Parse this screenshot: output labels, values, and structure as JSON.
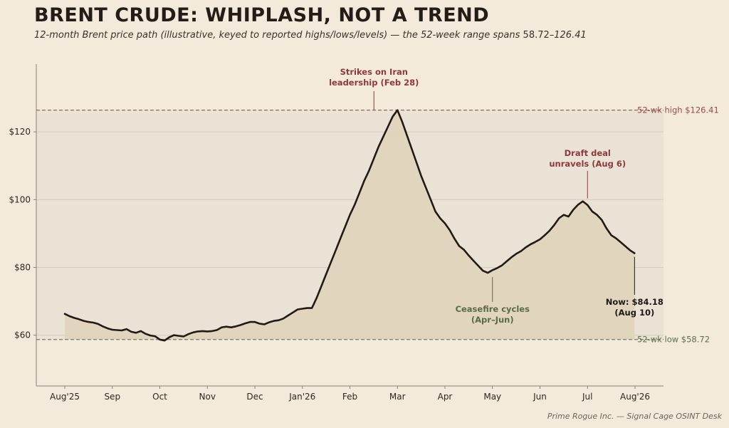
{
  "title": "BRENT CRUDE: WHIPLASH, NOT A TREND",
  "subtitle_text": "12-month Brent price path (illustrative, keyed to reported highs/lows/levels) — the 52-week range spans ",
  "subtitle_range_low": "58.72",
  "subtitle_range_sep": "–",
  "subtitle_range_high": "126.41",
  "credit": "Prime Rogue Inc. — Signal Cage OSINT Desk",
  "colors": {
    "background": "#f3eadb",
    "plot_band": "#e9e2d5",
    "area_fill": "#e0d4bc",
    "line": "#231a16",
    "high_ref": "#9a4b4b",
    "low_ref": "#5e6e52",
    "grid": "#d4ccbf",
    "annot_red": "#8c3a3a",
    "annot_green": "#5a6b4a",
    "annot_dark": "#1e1915"
  },
  "chart_data": {
    "type": "line",
    "ylim": [
      45,
      140
    ],
    "y_ticks": [
      {
        "value": 60,
        "label": "$60"
      },
      {
        "value": 80,
        "label": "$80"
      },
      {
        "value": 100,
        "label": "$100"
      },
      {
        "value": 120,
        "label": "$120"
      }
    ],
    "x_ticks": [
      "Aug'25",
      "Sep",
      "Oct",
      "Nov",
      "Dec",
      "Jan'26",
      "Feb",
      "Mar",
      "Apr",
      "May",
      "Jun",
      "Jul",
      "Aug'26"
    ],
    "reference_lines": [
      {
        "id": "high",
        "value": 126.41,
        "label": "52-wk high $126.41"
      },
      {
        "id": "low",
        "value": 58.72,
        "label": "52-wk low $58.72"
      }
    ],
    "series_points": [
      [
        0,
        66.3
      ],
      [
        0.1,
        65.6
      ],
      [
        0.2,
        65.1
      ],
      [
        0.3,
        64.7
      ],
      [
        0.4,
        64.2
      ],
      [
        0.5,
        63.9
      ],
      [
        0.6,
        63.7
      ],
      [
        0.7,
        63.3
      ],
      [
        0.8,
        62.6
      ],
      [
        0.9,
        62.0
      ],
      [
        1.0,
        61.6
      ],
      [
        1.1,
        61.5
      ],
      [
        1.2,
        61.4
      ],
      [
        1.3,
        61.8
      ],
      [
        1.4,
        61.0
      ],
      [
        1.5,
        60.7
      ],
      [
        1.6,
        61.2
      ],
      [
        1.7,
        60.4
      ],
      [
        1.8,
        59.9
      ],
      [
        1.9,
        59.7
      ],
      [
        2.0,
        58.7
      ],
      [
        2.1,
        58.4
      ],
      [
        2.2,
        59.4
      ],
      [
        2.3,
        60.0
      ],
      [
        2.4,
        59.8
      ],
      [
        2.5,
        59.6
      ],
      [
        2.6,
        60.3
      ],
      [
        2.7,
        60.8
      ],
      [
        2.8,
        61.1
      ],
      [
        2.9,
        61.2
      ],
      [
        3.0,
        61.1
      ],
      [
        3.1,
        61.2
      ],
      [
        3.2,
        61.5
      ],
      [
        3.3,
        62.3
      ],
      [
        3.4,
        62.5
      ],
      [
        3.5,
        62.3
      ],
      [
        3.6,
        62.6
      ],
      [
        3.7,
        63.0
      ],
      [
        3.8,
        63.5
      ],
      [
        3.9,
        63.9
      ],
      [
        4.0,
        63.9
      ],
      [
        4.1,
        63.4
      ],
      [
        4.2,
        63.2
      ],
      [
        4.3,
        63.8
      ],
      [
        4.4,
        64.2
      ],
      [
        4.5,
        64.4
      ],
      [
        4.6,
        64.9
      ],
      [
        4.7,
        65.8
      ],
      [
        4.8,
        66.7
      ],
      [
        4.9,
        67.6
      ],
      [
        5.0,
        67.8
      ],
      [
        5.1,
        68.0
      ],
      [
        5.2,
        68.0
      ],
      [
        5.3,
        71.0
      ],
      [
        5.4,
        74.5
      ],
      [
        5.5,
        78.0
      ],
      [
        5.6,
        81.5
      ],
      [
        5.7,
        85.0
      ],
      [
        5.8,
        88.5
      ],
      [
        5.9,
        92.0
      ],
      [
        6.0,
        95.5
      ],
      [
        6.1,
        98.5
      ],
      [
        6.2,
        102.0
      ],
      [
        6.3,
        105.5
      ],
      [
        6.4,
        108.5
      ],
      [
        6.5,
        112.0
      ],
      [
        6.6,
        115.5
      ],
      [
        6.7,
        118.5
      ],
      [
        6.8,
        121.5
      ],
      [
        6.9,
        124.5
      ],
      [
        7.0,
        126.41
      ],
      [
        7.1,
        123.0
      ],
      [
        7.2,
        119.0
      ],
      [
        7.3,
        115.0
      ],
      [
        7.4,
        111.0
      ],
      [
        7.5,
        107.0
      ],
      [
        7.6,
        103.5
      ],
      [
        7.7,
        100.0
      ],
      [
        7.8,
        96.5
      ],
      [
        7.9,
        94.5
      ],
      [
        8.0,
        93.0
      ],
      [
        8.1,
        91.0
      ],
      [
        8.2,
        88.5
      ],
      [
        8.3,
        86.3
      ],
      [
        8.4,
        85.2
      ],
      [
        8.5,
        83.5
      ],
      [
        8.6,
        82.0
      ],
      [
        8.7,
        80.5
      ],
      [
        8.8,
        79.0
      ],
      [
        8.9,
        78.4
      ],
      [
        9.0,
        79.2
      ],
      [
        9.1,
        79.8
      ],
      [
        9.2,
        80.6
      ],
      [
        9.3,
        81.8
      ],
      [
        9.4,
        83.0
      ],
      [
        9.5,
        84.0
      ],
      [
        9.6,
        84.8
      ],
      [
        9.7,
        85.9
      ],
      [
        9.8,
        86.8
      ],
      [
        9.9,
        87.5
      ],
      [
        10.0,
        88.3
      ],
      [
        10.1,
        89.5
      ],
      [
        10.2,
        90.8
      ],
      [
        10.3,
        92.5
      ],
      [
        10.4,
        94.5
      ],
      [
        10.5,
        95.5
      ],
      [
        10.6,
        95.0
      ],
      [
        10.7,
        97.0
      ],
      [
        10.8,
        98.5
      ],
      [
        10.9,
        99.5
      ],
      [
        11.0,
        98.4
      ],
      [
        11.1,
        96.5
      ],
      [
        11.2,
        95.5
      ],
      [
        11.3,
        94.0
      ],
      [
        11.4,
        91.5
      ],
      [
        11.5,
        89.5
      ],
      [
        11.6,
        88.6
      ],
      [
        11.7,
        87.4
      ],
      [
        11.8,
        86.2
      ],
      [
        11.9,
        85.0
      ],
      [
        11.99,
        84.18
      ]
    ],
    "annotations": [
      {
        "id": "strikes",
        "x": 7.0,
        "y": 126.41,
        "line1": "Strikes on Iran",
        "line2": "leadership (Feb 28)",
        "color_key": "annot_red",
        "position": "above"
      },
      {
        "id": "draft",
        "x": 11.0,
        "y": 99.5,
        "line1": "Draft deal",
        "line2": "unravels (Aug 6)",
        "color_key": "annot_red",
        "position": "above"
      },
      {
        "id": "ceasefire",
        "x": 9.0,
        "y": 78.4,
        "line1": "Ceasefire cycles",
        "line2": "(Apr–Jun)",
        "color_key": "annot_green",
        "position": "below"
      },
      {
        "id": "now",
        "x": 11.99,
        "y": 84.18,
        "line1": "Now: $84.18",
        "line2": "(Aug 10)",
        "color_key": "annot_dark",
        "position": "below"
      }
    ]
  }
}
